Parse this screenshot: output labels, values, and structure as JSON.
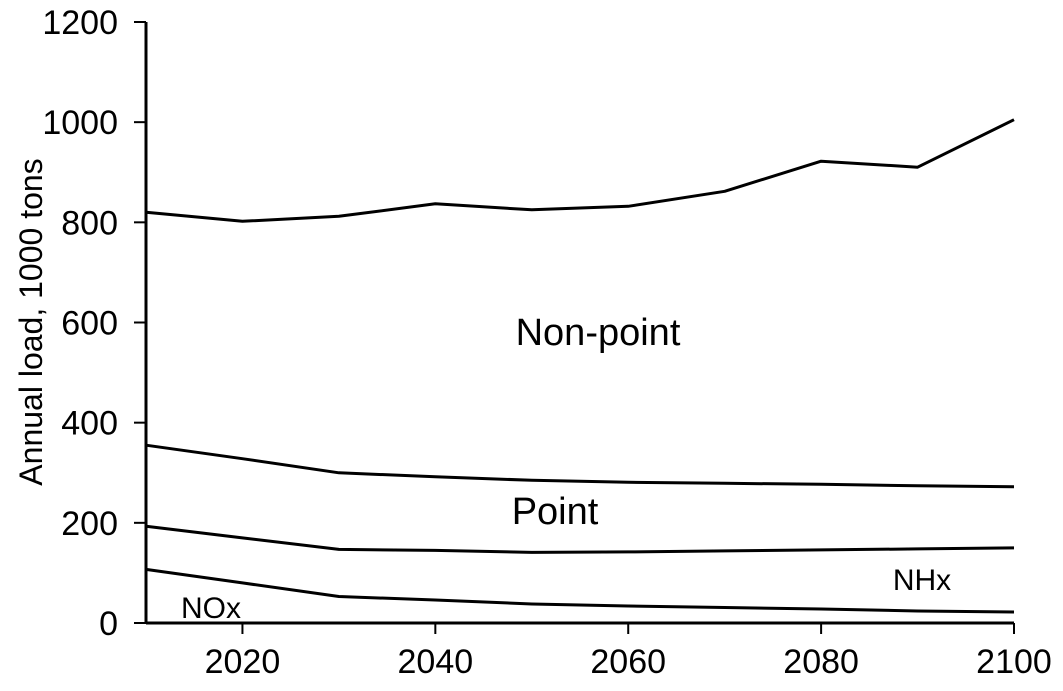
{
  "chart_data": {
    "type": "line",
    "title": "",
    "xlabel": "",
    "ylabel": "Annual load, 1000 tons",
    "xlim": [
      2010,
      2100
    ],
    "ylim": [
      0,
      1200
    ],
    "x_ticks": [
      2020,
      2040,
      2060,
      2080,
      2100
    ],
    "y_ticks": [
      0,
      200,
      400,
      600,
      800,
      1000,
      1200
    ],
    "grid": false,
    "legend": "none",
    "x": [
      2010,
      2020,
      2030,
      2040,
      2050,
      2060,
      2070,
      2080,
      2090,
      2100
    ],
    "series": [
      {
        "values": [
          107,
          80,
          53,
          46,
          38,
          34,
          31,
          28,
          24,
          22
        ]
      },
      {
        "values": [
          193,
          170,
          147,
          145,
          141,
          142,
          144,
          146,
          148,
          150
        ]
      },
      {
        "values": [
          355,
          328,
          300,
          292,
          285,
          281,
          279,
          277,
          274,
          272
        ]
      },
      {
        "values": [
          820,
          802,
          812,
          837,
          825,
          832,
          862,
          922,
          910,
          1005
        ]
      }
    ],
    "region_labels": [
      {
        "text": "NOx"
      },
      {
        "text": "NHx"
      },
      {
        "text": "Point"
      },
      {
        "text": "Non-point"
      }
    ]
  }
}
